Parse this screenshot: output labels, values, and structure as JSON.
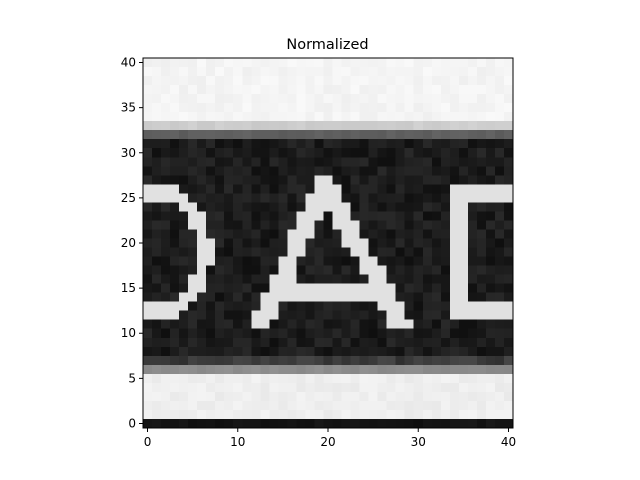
{
  "chart_data": {
    "type": "heatmap",
    "title": "Normalized",
    "colormap": "gray",
    "xlim": [
      -0.5,
      40.5
    ],
    "ylim": [
      40.5,
      -0.5
    ],
    "x_ticks": [
      0,
      10,
      20,
      30,
      40
    ],
    "y_ticks": [
      0,
      5,
      10,
      15,
      20,
      25,
      30,
      35,
      40
    ],
    "grid": false,
    "content": "grayscale image of a light letter A between a partial D-shaped letter on the left and a partial rectangular letter on the right, on a dark band (rows 8 to 34) with light bands above and below",
    "highlight_box": {
      "x0": 15,
      "y0": 15,
      "x1": 24,
      "y1": 24,
      "color": "#ff0000"
    },
    "colors": {
      "box": "#ff0000",
      "axes": "#000000"
    }
  }
}
